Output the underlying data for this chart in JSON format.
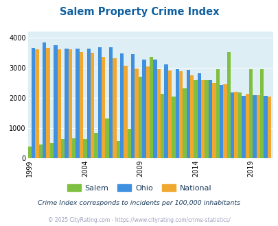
{
  "title": "Salem Property Crime Index",
  "title_color": "#1060a0",
  "years": [
    1999,
    2000,
    2001,
    2002,
    2003,
    2004,
    2005,
    2006,
    2007,
    2008,
    2009,
    2010,
    2011,
    2012,
    2013,
    2014,
    2015,
    2016,
    2017,
    2018,
    2019,
    2020
  ],
  "salem": [
    380,
    460,
    490,
    630,
    650,
    640,
    840,
    1320,
    560,
    970,
    2700,
    3360,
    2140,
    2040,
    2320,
    2600,
    2590,
    2950,
    3520,
    2190,
    2960,
    2950
  ],
  "ohio": [
    3650,
    3840,
    3760,
    3640,
    3640,
    3640,
    3680,
    3680,
    3480,
    3460,
    3280,
    3280,
    3110,
    2960,
    2940,
    2820,
    2590,
    2430,
    2180,
    2060,
    2090,
    2060
  ],
  "national": [
    3620,
    3660,
    3620,
    3620,
    3520,
    3490,
    3370,
    3320,
    3060,
    2980,
    3050,
    2950,
    2920,
    2880,
    2740,
    2600,
    2490,
    2460,
    2200,
    2130,
    2080,
    2050
  ],
  "salem_color": "#80c040",
  "ohio_color": "#4090e0",
  "national_color": "#f0a830",
  "bg_color": "#ddeef5",
  "ylim": [
    0,
    4200
  ],
  "yticks": [
    0,
    1000,
    2000,
    3000,
    4000
  ],
  "xtick_years": [
    1999,
    2004,
    2009,
    2014,
    2019
  ],
  "footnote1": "Crime Index corresponds to incidents per 100,000 inhabitants",
  "footnote2": "© 2025 CityRating.com - https://www.cityrating.com/crime-statistics/",
  "footnote1_color": "#1a3a5a",
  "footnote2_color": "#a0a0c0",
  "legend_labels": [
    "Salem",
    "Ohio",
    "National"
  ]
}
